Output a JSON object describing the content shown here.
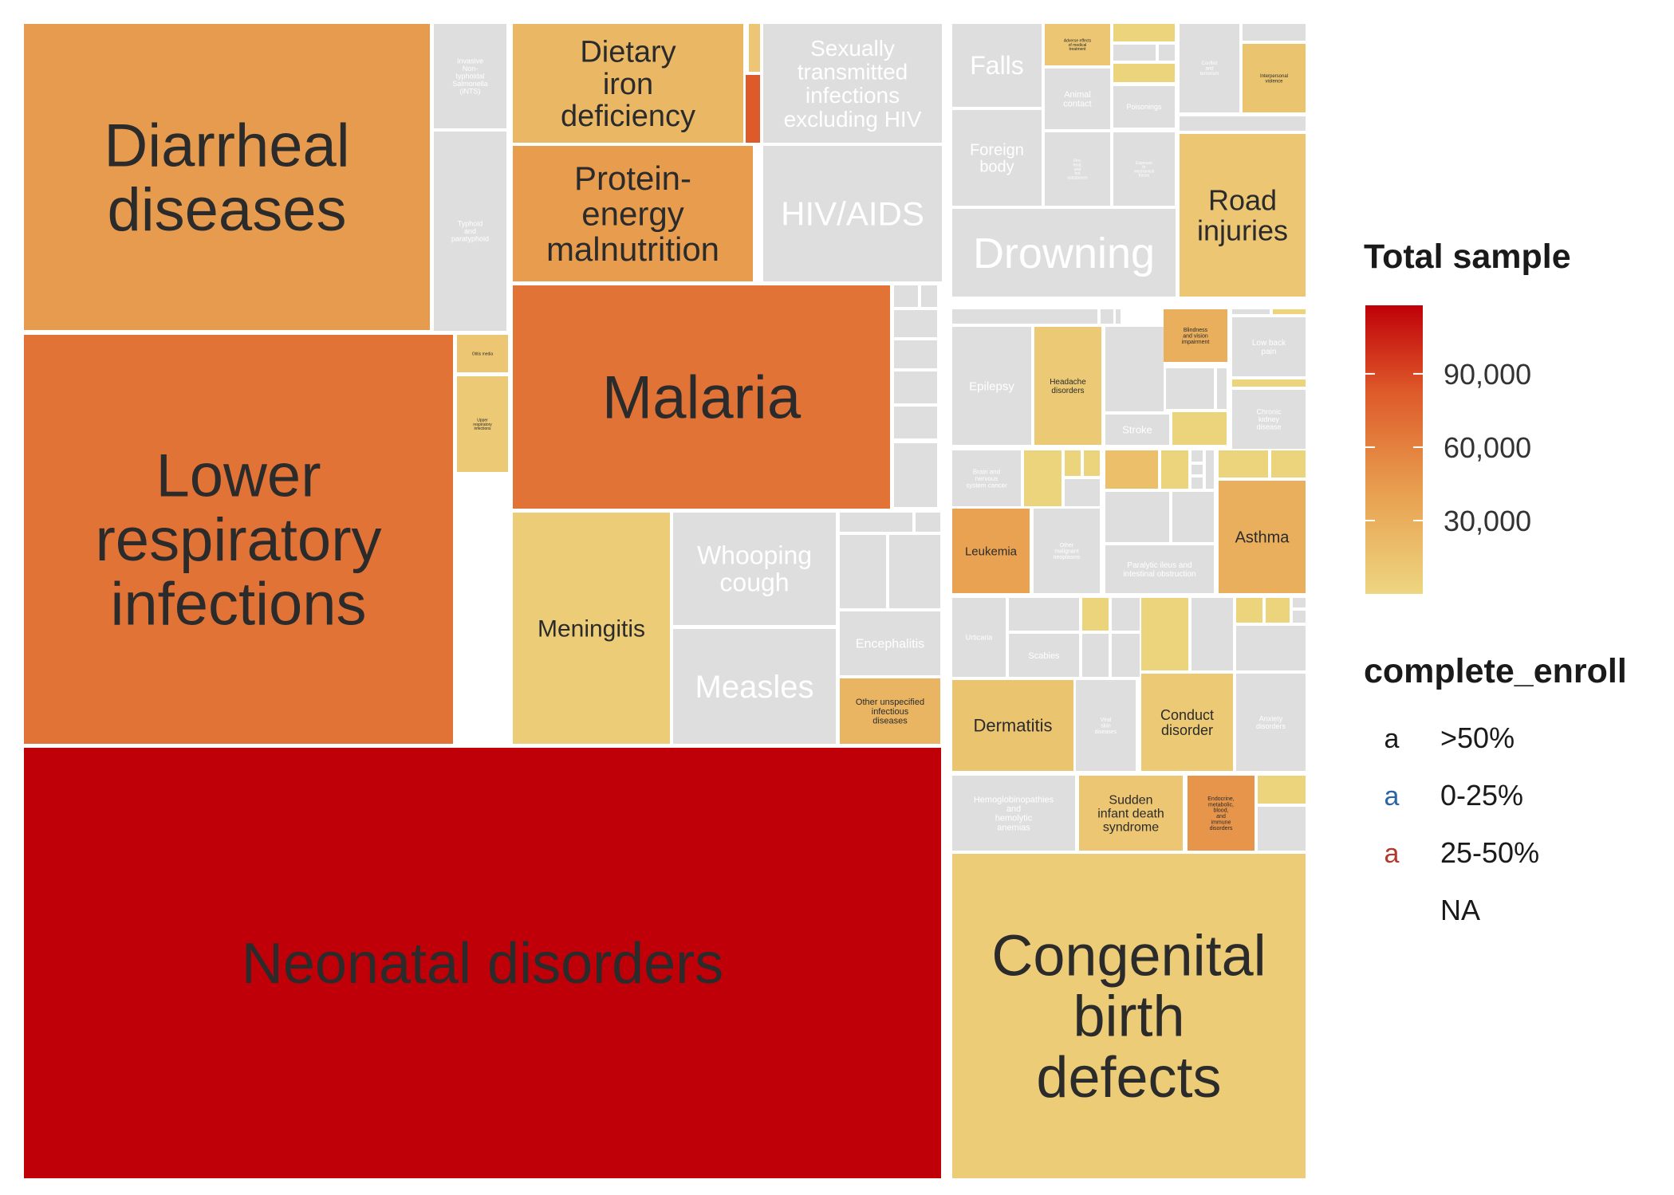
{
  "chart_data": {
    "type": "treemap",
    "title": "",
    "legend": {
      "total_sample": {
        "title": "Total sample",
        "ticks": [
          "30,000",
          "60,000",
          "90,000"
        ],
        "tick_values": [
          30000,
          60000,
          90000
        ],
        "domain": [
          0,
          118000
        ],
        "color_low": "#edd680",
        "color_high": "#c00008"
      },
      "complete_enroll": {
        "title": "complete_enroll",
        "entries": [
          {
            "key": "a",
            "label": ">50%",
            "color": "#1a1a1a"
          },
          {
            "key": "a",
            "label": "0-25%",
            "color": "#2c64a8"
          },
          {
            "key": "a",
            "label": "25-50%",
            "color": "#b13a2a"
          },
          {
            "key": "",
            "label": "NA",
            "color": "#ffffff"
          }
        ]
      }
    },
    "nodes": [
      {
        "label": "Diarrheal\ndiseases",
        "total_sample": 44000
      },
      {
        "label": "Invasive\nNon-\ntyphoidal\nSalmonella\n(iNTS)",
        "total_sample": null
      },
      {
        "label": "Typhoid\nand\nparatyphoid",
        "total_sample": null
      },
      {
        "label": "Dietary\niron\ndeficiency",
        "total_sample": 23000
      },
      {
        "label": "Protein-\nenergy\nmalnutrition",
        "total_sample": 43000
      },
      {
        "label": "Sexually\ntransmitted\ninfections\nexcluding HIV",
        "total_sample": null
      },
      {
        "label": "HIV/AIDS",
        "total_sample": null
      },
      {
        "label": "Lower\nrespiratory\ninfections",
        "total_sample": 68000
      },
      {
        "label": "Otitis media",
        "total_sample": 12000
      },
      {
        "label": "Upper\nrespiratory\ninfections",
        "total_sample": 10000
      },
      {
        "label": "Malaria",
        "total_sample": 68000
      },
      {
        "label": "Meningitis",
        "total_sample": 8000
      },
      {
        "label": "Whooping\ncough",
        "total_sample": null
      },
      {
        "label": "Measles",
        "total_sample": null
      },
      {
        "label": "Encephalitis",
        "total_sample": null
      },
      {
        "label": "Other unspecified\ninfectious\ndiseases",
        "total_sample": 25000
      },
      {
        "label": "Neonatal disorders",
        "total_sample": 118000
      },
      {
        "label": "Falls",
        "total_sample": null
      },
      {
        "label": "Adverse effects\nof medical\ntreatment",
        "total_sample": 12000
      },
      {
        "label": "Foreign\nbody",
        "total_sample": null
      },
      {
        "label": "Animal\ncontact",
        "total_sample": null
      },
      {
        "label": "Poisonings",
        "total_sample": null
      },
      {
        "label": "Fire,\nheat,\nand\nhot\nsubstances",
        "total_sample": null
      },
      {
        "label": "Exposure\nto\nmechanical\nforces",
        "total_sample": null
      },
      {
        "label": "Conflict\nand\nterrorism",
        "total_sample": null
      },
      {
        "label": "Interpersonal\nviolence",
        "total_sample": 14000
      },
      {
        "label": "Drowning",
        "total_sample": null
      },
      {
        "label": "Road\ninjuries",
        "total_sample": 12000
      },
      {
        "label": "Epilepsy",
        "total_sample": null
      },
      {
        "label": "Headache\ndisorders",
        "total_sample": 10000
      },
      {
        "label": "Blindness\nand vision\nimpairment",
        "total_sample": 30000
      },
      {
        "label": "Low back\npain",
        "total_sample": null
      },
      {
        "label": "Stroke",
        "total_sample": null
      },
      {
        "label": "Chronic\nkidney\ndisease",
        "total_sample": null
      },
      {
        "label": "Brain and\nnervous\nsystem cancer",
        "total_sample": null
      },
      {
        "label": "Leukemia",
        "total_sample": 40000
      },
      {
        "label": "Other\nmalignant\nneoplasms",
        "total_sample": null
      },
      {
        "label": "Paralytic ileus and\nintestinal obstruction",
        "total_sample": null
      },
      {
        "label": "Asthma",
        "total_sample": 30000
      },
      {
        "label": "Dermatitis",
        "total_sample": 14000
      },
      {
        "label": "Urticaria",
        "total_sample": null
      },
      {
        "label": "Scabies",
        "total_sample": null
      },
      {
        "label": "Viral\nskin\ndiseases",
        "total_sample": null
      },
      {
        "label": "Conduct\ndisorder",
        "total_sample": 10000
      },
      {
        "label": "Anxiety\ndisorders",
        "total_sample": null
      },
      {
        "label": "Hemoglobinopathies\nand\nhemolytic\nanemias",
        "total_sample": null
      },
      {
        "label": "Sudden\ninfant death\nsyndrome",
        "total_sample": 12000
      },
      {
        "label": "Endocrine,\nmetabolic,\nblood,\nand\nimmune\ndisorders",
        "total_sample": 48000
      },
      {
        "label": "Congenital\nbirth\ndefects",
        "total_sample": 8000
      }
    ]
  }
}
